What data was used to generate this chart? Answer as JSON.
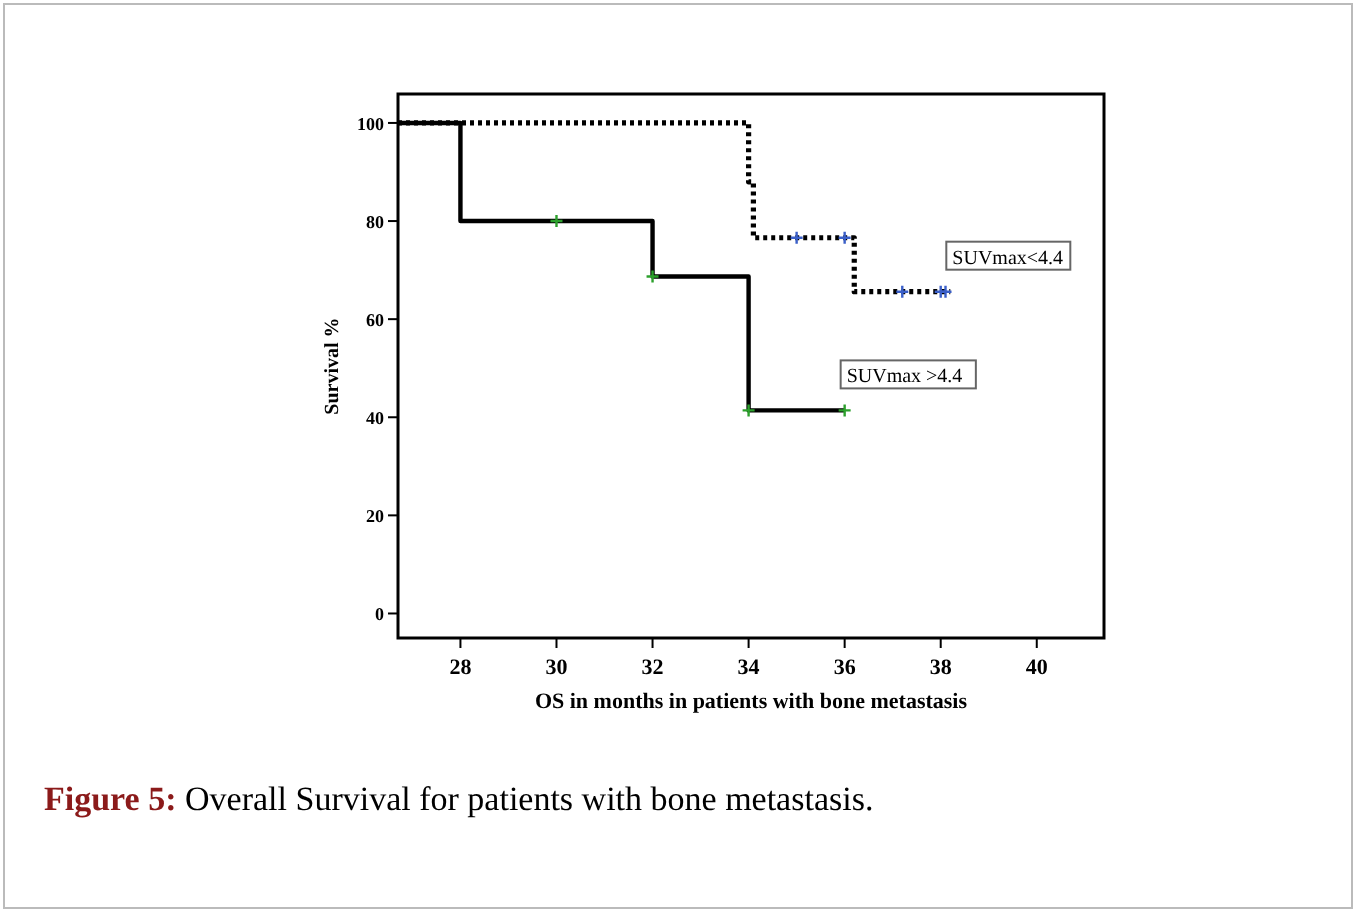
{
  "chart_data": {
    "type": "step",
    "xlabel": "OS in months in patients with bone metastasis",
    "ylabel": "Survival %",
    "xlim": [
      26.7,
      41.4
    ],
    "xticks": [
      28,
      30,
      32,
      34,
      36,
      38,
      40
    ],
    "ylim": [
      -5,
      105.9
    ],
    "yticks": [
      0,
      20,
      40,
      60,
      80,
      100
    ],
    "series": [
      {
        "type": "step",
        "color": "#000000",
        "line_style": "dotted",
        "x": [
          26.7,
          34,
          34.1,
          36.2,
          38.2
        ],
        "values": [
          100,
          88,
          76.6,
          65.6,
          65.6
        ]
      },
      {
        "color": "#000000",
        "line_style": "solid",
        "x": [
          26.7,
          28,
          32,
          34,
          36
        ],
        "values": [
          100,
          80,
          68.7,
          41.4,
          41.4
        ]
      },
      {
        "type": "scatter",
        "color": "#3a5fc8",
        "marker": "cross",
        "x": [
          35,
          36,
          37.2,
          38,
          38.1
        ],
        "values": [
          76.6,
          76.6,
          65.6,
          65.6,
          65.6
        ]
      },
      {
        "type": "scatter",
        "color": "#2ca02c",
        "marker": "cross",
        "x": [
          30,
          32,
          34,
          36
        ],
        "values": [
          80,
          68.7,
          41.4,
          41.4
        ]
      }
    ],
    "annotations": [
      {
        "text": "SUVmax<4.4",
        "x": 38.2,
        "y": 65.6
      },
      {
        "text": "SUVmax >4.4",
        "x": 36,
        "y": 41.4
      },
      "Figure 5: Overall Survival for patients with bone metastasis."
    ]
  }
}
